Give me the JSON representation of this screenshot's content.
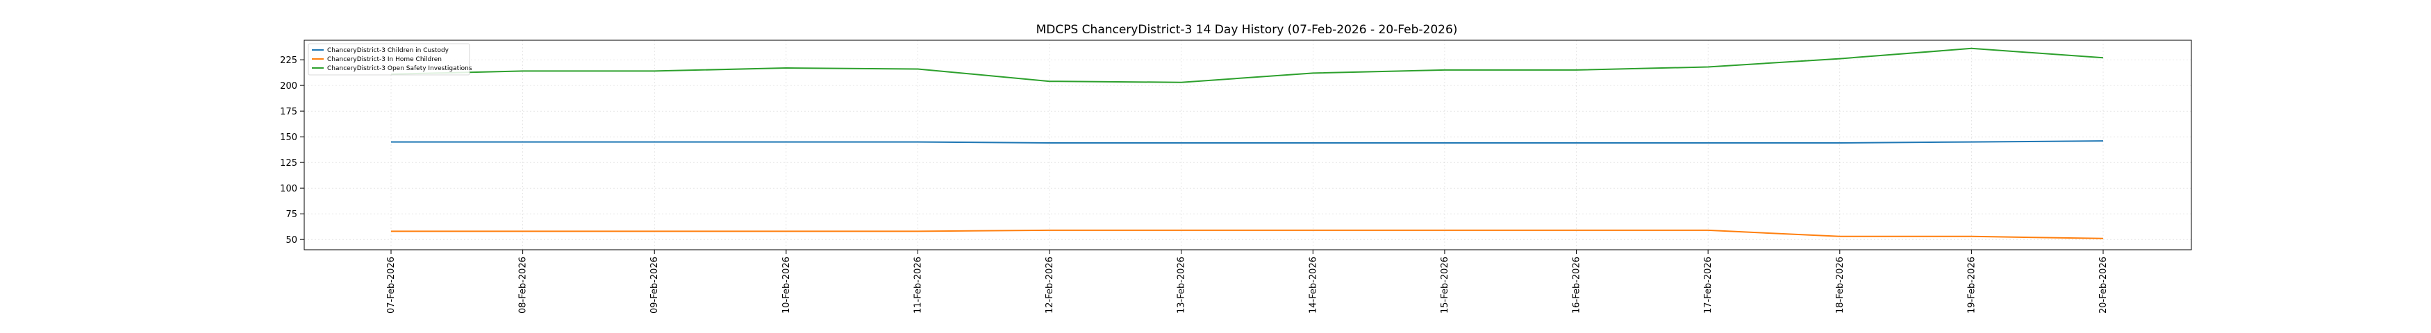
{
  "chart_data": {
    "type": "line",
    "title": "MDCPS ChanceryDistrict-3 14 Day History (07-Feb-2026 - 20-Feb-2026)",
    "xlabel": "",
    "ylabel": "",
    "categories": [
      "07-Feb-2026",
      "08-Feb-2026",
      "09-Feb-2026",
      "10-Feb-2026",
      "11-Feb-2026",
      "12-Feb-2026",
      "13-Feb-2026",
      "14-Feb-2026",
      "15-Feb-2026",
      "16-Feb-2026",
      "17-Feb-2026",
      "18-Feb-2026",
      "19-Feb-2026",
      "20-Feb-2026"
    ],
    "ylim": [
      40,
      244
    ],
    "yticks": [
      50,
      75,
      100,
      125,
      150,
      175,
      200,
      225
    ],
    "grid": true,
    "legend_position": "upper left",
    "series": [
      {
        "name": "ChanceryDistrict-3 Children in Custody",
        "color": "#1f77b4",
        "values": [
          145,
          145,
          145,
          145,
          145,
          144,
          144,
          144,
          144,
          144,
          144,
          144,
          145,
          146
        ]
      },
      {
        "name": "ChanceryDistrict-3 In Home Children",
        "color": "#ff7f0e",
        "values": [
          58,
          58,
          58,
          58,
          58,
          59,
          59,
          59,
          59,
          59,
          59,
          53,
          53,
          51
        ]
      },
      {
        "name": "ChanceryDistrict-3 Open Safety Investigations",
        "color": "#2ca02c",
        "values": [
          211,
          214,
          214,
          217,
          216,
          204,
          203,
          212,
          215,
          215,
          218,
          226,
          236,
          227
        ]
      }
    ]
  }
}
